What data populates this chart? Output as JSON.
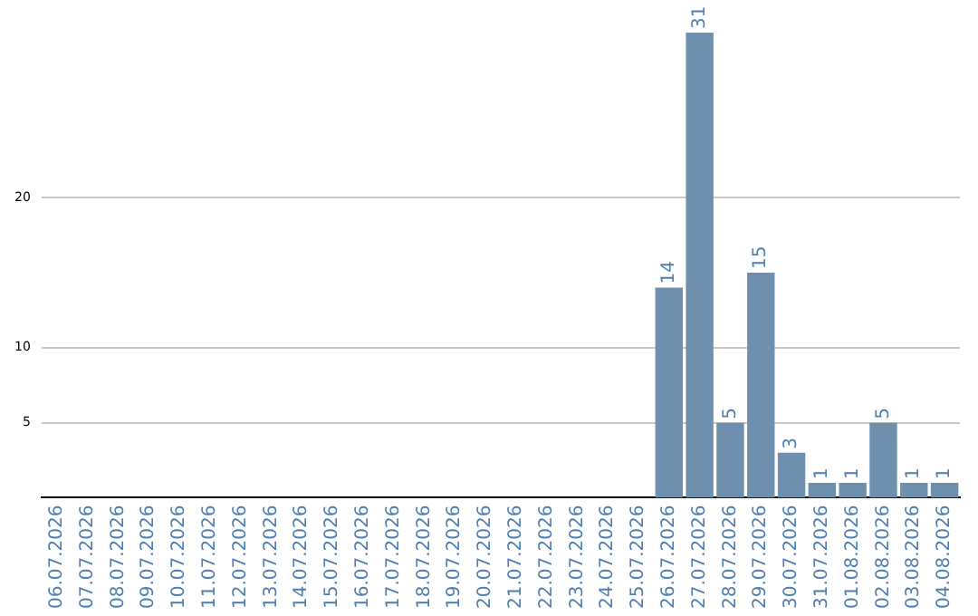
{
  "chart_data": {
    "type": "bar",
    "categories": [
      "06.07.2026",
      "07.07.2026",
      "08.07.2026",
      "09.07.2026",
      "10.07.2026",
      "11.07.2026",
      "12.07.2026",
      "13.07.2026",
      "14.07.2026",
      "15.07.2026",
      "16.07.2026",
      "17.07.2026",
      "18.07.2026",
      "19.07.2026",
      "20.07.2026",
      "21.07.2026",
      "22.07.2026",
      "23.07.2026",
      "24.07.2026",
      "25.07.2026",
      "26.07.2026",
      "27.07.2026",
      "28.07.2026",
      "29.07.2026",
      "30.07.2026",
      "31.07.2026",
      "01.08.2026",
      "02.08.2026",
      "03.08.2026",
      "04.08.2026"
    ],
    "values": [
      0,
      0,
      0,
      0,
      0,
      0,
      0,
      0,
      0,
      0,
      0,
      0,
      0,
      0,
      0,
      0,
      0,
      0,
      0,
      0,
      14,
      31,
      5,
      15,
      3,
      1,
      1,
      5,
      1,
      1
    ],
    "value_labels": [
      null,
      null,
      null,
      null,
      null,
      null,
      null,
      null,
      null,
      null,
      null,
      null,
      null,
      null,
      null,
      null,
      null,
      null,
      null,
      null,
      "14",
      "31",
      "5",
      "15",
      "3",
      "1",
      "1",
      "5",
      "1",
      "1"
    ],
    "color": "#6f8fae",
    "ylim": [
      0,
      31
    ],
    "yticks": [
      5,
      10,
      20
    ],
    "grid": "y",
    "legend": false
  }
}
